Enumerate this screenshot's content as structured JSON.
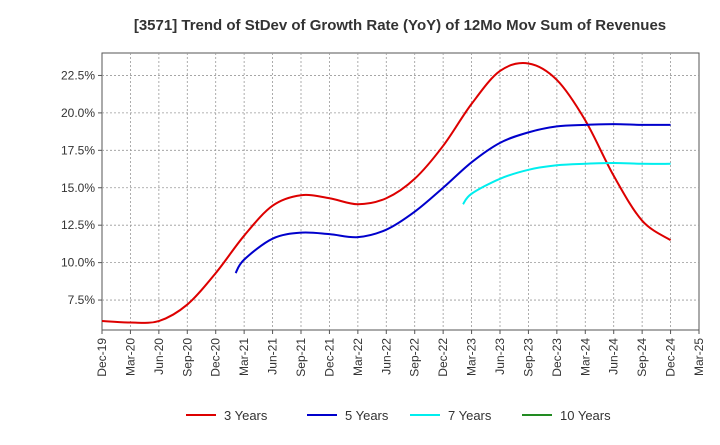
{
  "chart_data": {
    "type": "line",
    "title": "[3571]  Trend of StDev of Growth Rate (YoY) of 12Mo Mov Sum of Revenues",
    "xlabel": "",
    "ylabel": "",
    "ylim": [
      5.5,
      24.0
    ],
    "yticks": [
      7.5,
      10.0,
      12.5,
      15.0,
      17.5,
      20.0,
      22.5
    ],
    "ytick_labels": [
      "7.5%",
      "10.0%",
      "12.5%",
      "15.0%",
      "17.5%",
      "20.0%",
      "22.5%"
    ],
    "xticks": [
      "Dec-19",
      "Mar-20",
      "Jun-20",
      "Sep-20",
      "Dec-20",
      "Mar-21",
      "Jun-21",
      "Sep-21",
      "Dec-21",
      "Mar-22",
      "Jun-22",
      "Sep-22",
      "Dec-22",
      "Mar-23",
      "Jun-23",
      "Sep-23",
      "Dec-23",
      "Mar-24",
      "Jun-24",
      "Sep-24",
      "Dec-24",
      "Mar-25"
    ],
    "grid": true,
    "legend_position": "bottom",
    "series": [
      {
        "name": "3 Years",
        "color": "#dd0000",
        "start_index": 0,
        "values": [
          6.1,
          6.0,
          6.1,
          7.2,
          9.3,
          11.8,
          13.8,
          14.5,
          14.3,
          13.9,
          14.3,
          15.6,
          17.8,
          20.6,
          22.8,
          23.3,
          22.2,
          19.5,
          15.8,
          12.8,
          11.5
        ]
      },
      {
        "name": "5 Years",
        "color": "#0000cc",
        "start_index": 4.7,
        "values_indexed": [
          [
            4.7,
            9.3
          ],
          [
            5,
            10.2
          ],
          [
            6,
            11.6
          ],
          [
            7,
            12.0
          ],
          [
            8,
            11.9
          ],
          [
            9,
            11.7
          ],
          [
            10,
            12.2
          ],
          [
            11,
            13.4
          ],
          [
            12,
            15.0
          ],
          [
            13,
            16.7
          ],
          [
            14,
            18.0
          ],
          [
            15,
            18.7
          ],
          [
            16,
            19.1
          ],
          [
            17,
            19.2
          ],
          [
            18,
            19.25
          ],
          [
            19,
            19.2
          ],
          [
            20,
            19.2
          ]
        ]
      },
      {
        "name": "7 Years",
        "color": "#00eeee",
        "values_indexed": [
          [
            12.7,
            13.9
          ],
          [
            13,
            14.6
          ],
          [
            14,
            15.6
          ],
          [
            15,
            16.2
          ],
          [
            16,
            16.5
          ],
          [
            17,
            16.6
          ],
          [
            18,
            16.65
          ],
          [
            19,
            16.6
          ],
          [
            20,
            16.6
          ]
        ]
      },
      {
        "name": "10 Years",
        "color": "#228b22",
        "values_indexed": []
      }
    ]
  }
}
